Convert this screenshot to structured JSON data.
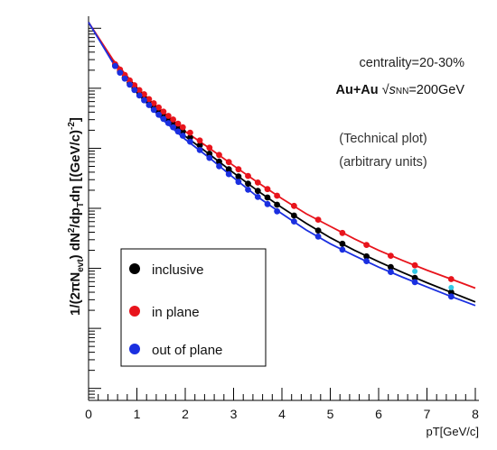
{
  "chart_data": {
    "type": "scatter",
    "xlabel": "pT[GeV/c]",
    "ylabel": "1/(2πN_evt) dN²/dp_Tdη [(GeV/c)⁻²]",
    "ylabel_parts": {
      "pre": "1/(2πN",
      "sub1": "evt",
      "mid": ") dN",
      "sup1": "2",
      "mid2": "/dp",
      "sub2": "T",
      "post": "dη [(GeV/c)",
      "sup2": "-2",
      "end": "]"
    },
    "xlim": [
      0,
      8
    ],
    "x_ticks": [
      0,
      1,
      2,
      3,
      4,
      5,
      6,
      7,
      8
    ],
    "y_scale": "log",
    "y_units": "arbitrary",
    "ylim": [
      -6.2,
      0.2
    ],
    "annotations": {
      "centrality": "centrality=20-30%",
      "system_a": "Au+Au ",
      "system_sqrt": "√",
      "system_s": "s",
      "system_sub": "NN",
      "system_b": "=200GeV",
      "note1": "(Technical plot)",
      "note2": "(arbitrary units)"
    },
    "legend_position": "bottom-left",
    "series": [
      {
        "name": "inclusive",
        "color": "#000000",
        "x": [
          0.55,
          0.65,
          0.75,
          0.85,
          0.95,
          1.05,
          1.15,
          1.25,
          1.35,
          1.45,
          1.55,
          1.65,
          1.75,
          1.85,
          1.95,
          2.1,
          2.3,
          2.5,
          2.7,
          2.9,
          3.1,
          3.3,
          3.5,
          3.7,
          3.9,
          4.25,
          4.75,
          5.25,
          5.75,
          6.25,
          6.75,
          7.5
        ],
        "y": [
          -0.62,
          -0.72,
          -0.82,
          -0.91,
          -1.0,
          -1.08,
          -1.16,
          -1.24,
          -1.31,
          -1.38,
          -1.45,
          -1.52,
          -1.59,
          -1.66,
          -1.72,
          -1.82,
          -1.95,
          -2.09,
          -2.22,
          -2.35,
          -2.47,
          -2.59,
          -2.71,
          -2.82,
          -2.94,
          -3.12,
          -3.37,
          -3.59,
          -3.8,
          -3.98,
          -4.16,
          -4.4
        ]
      },
      {
        "name": "in plane",
        "color": "#e8141c",
        "x": [
          0.55,
          0.65,
          0.75,
          0.85,
          0.95,
          1.05,
          1.15,
          1.25,
          1.35,
          1.45,
          1.55,
          1.65,
          1.75,
          1.85,
          1.95,
          2.1,
          2.3,
          2.5,
          2.7,
          2.9,
          3.1,
          3.3,
          3.5,
          3.7,
          3.9,
          4.25,
          4.75,
          5.25,
          5.75,
          6.25,
          6.75,
          7.5
        ],
        "y": [
          -0.6,
          -0.69,
          -0.78,
          -0.87,
          -0.95,
          -1.03,
          -1.1,
          -1.18,
          -1.25,
          -1.32,
          -1.39,
          -1.46,
          -1.52,
          -1.59,
          -1.65,
          -1.74,
          -1.87,
          -1.99,
          -2.11,
          -2.23,
          -2.35,
          -2.46,
          -2.57,
          -2.68,
          -2.79,
          -2.96,
          -3.19,
          -3.41,
          -3.61,
          -3.79,
          -3.95,
          -4.18
        ]
      },
      {
        "name": "out of plane",
        "color": "#1a2fe0",
        "x": [
          0.55,
          0.65,
          0.75,
          0.85,
          0.95,
          1.05,
          1.15,
          1.25,
          1.35,
          1.45,
          1.55,
          1.65,
          1.75,
          1.85,
          1.95,
          2.1,
          2.3,
          2.5,
          2.7,
          2.9,
          3.1,
          3.3,
          3.5,
          3.7,
          3.9,
          4.25,
          4.75,
          5.25,
          5.75,
          6.25,
          6.75,
          7.5
        ],
        "y": [
          -0.63,
          -0.74,
          -0.84,
          -0.94,
          -1.03,
          -1.12,
          -1.2,
          -1.28,
          -1.36,
          -1.44,
          -1.51,
          -1.58,
          -1.65,
          -1.72,
          -1.79,
          -1.89,
          -2.03,
          -2.16,
          -2.3,
          -2.43,
          -2.56,
          -2.69,
          -2.81,
          -2.93,
          -3.05,
          -3.22,
          -3.47,
          -3.69,
          -3.88,
          -4.06,
          -4.23,
          -4.47
        ]
      }
    ],
    "fits": [
      {
        "color": "#000000",
        "x": [
          0.0,
          0.5,
          1.0,
          1.5,
          2.0,
          2.5,
          3.0,
          3.5,
          4.0,
          4.5,
          5.0,
          5.5,
          6.0,
          6.5,
          7.0,
          7.5,
          8.0
        ],
        "y": [
          0.1,
          -0.55,
          -1.04,
          -1.46,
          -1.8,
          -2.1,
          -2.41,
          -2.71,
          -2.99,
          -3.25,
          -3.49,
          -3.7,
          -3.89,
          -4.07,
          -4.24,
          -4.4,
          -4.56
        ]
      },
      {
        "color": "#e8141c",
        "x": [
          0.0,
          0.5,
          1.0,
          1.5,
          2.0,
          2.5,
          3.0,
          3.5,
          4.0,
          4.5,
          5.0,
          5.5,
          6.0,
          6.5,
          7.0,
          7.5,
          8.0
        ],
        "y": [
          0.1,
          -0.52,
          -0.99,
          -1.39,
          -1.72,
          -2.0,
          -2.29,
          -2.57,
          -2.84,
          -3.09,
          -3.3,
          -3.51,
          -3.7,
          -3.87,
          -4.03,
          -4.18,
          -4.33
        ]
      },
      {
        "color": "#1a2fe0",
        "x": [
          0.0,
          0.5,
          1.0,
          1.5,
          2.0,
          2.5,
          3.0,
          3.5,
          4.0,
          4.5,
          5.0,
          5.5,
          6.0,
          6.5,
          7.0,
          7.5,
          8.0
        ],
        "y": [
          0.1,
          -0.57,
          -1.07,
          -1.5,
          -1.85,
          -2.16,
          -2.49,
          -2.81,
          -3.09,
          -3.36,
          -3.59,
          -3.79,
          -3.98,
          -4.15,
          -4.31,
          -4.47,
          -4.62
        ]
      }
    ],
    "extra_points": [
      {
        "color": "#33c9e6",
        "x": 6.75,
        "y": -4.05
      },
      {
        "color": "#33c9e6",
        "x": 7.5,
        "y": -4.32
      }
    ]
  }
}
